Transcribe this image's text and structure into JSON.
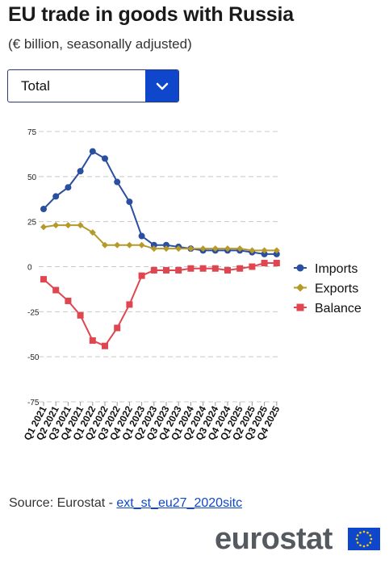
{
  "title": "EU trade in goods with Russia",
  "subtitle": "(€ billion, seasonally adjusted)",
  "selector": {
    "value": "Total"
  },
  "source": {
    "prefix": "Source: Eurostat - ",
    "link": "ext_st_eu27_2020sitc"
  },
  "logo": {
    "text": "eurostat"
  },
  "chart_data": {
    "type": "line",
    "categories": [
      "Q1 2021",
      "Q2 2021",
      "Q3 2021",
      "Q4 2021",
      "Q1 2022",
      "Q2 2022",
      "Q3 2022",
      "Q4 2022",
      "Q1 2023",
      "Q2 2023",
      "Q3 2023",
      "Q4 2023",
      "Q1 2024",
      "Q2 2024",
      "Q3 2024",
      "Q4 2024",
      "Q1 2025",
      "Q2 2025",
      "Q3 2025",
      "Q4 2025"
    ],
    "series": [
      {
        "name": "Imports",
        "color": "#2a4ea0",
        "marker": "circle",
        "values": [
          32,
          39,
          44,
          53,
          64,
          60,
          47,
          36,
          17,
          12,
          12,
          11,
          10,
          9,
          9,
          9,
          9,
          8,
          7,
          7
        ]
      },
      {
        "name": "Exports",
        "color": "#b59a2a",
        "marker": "diamond",
        "values": [
          22,
          23,
          23,
          23,
          19,
          12,
          12,
          12,
          12,
          10,
          10,
          10,
          10,
          10,
          10,
          10,
          10,
          9,
          9,
          9
        ]
      },
      {
        "name": "Balance",
        "color": "#e0464f",
        "marker": "square",
        "values": [
          -7,
          -13,
          -19,
          -27,
          -41,
          -44,
          -34,
          -21,
          -5,
          -2,
          -2,
          -2,
          -1,
          -1,
          -1,
          -2,
          -1,
          0,
          2,
          2
        ]
      }
    ],
    "yticks": [
      75,
      50,
      25,
      0,
      -25,
      -50,
      -75
    ],
    "ylim": [
      -75,
      75
    ],
    "grid": true,
    "legend_position": "right"
  }
}
